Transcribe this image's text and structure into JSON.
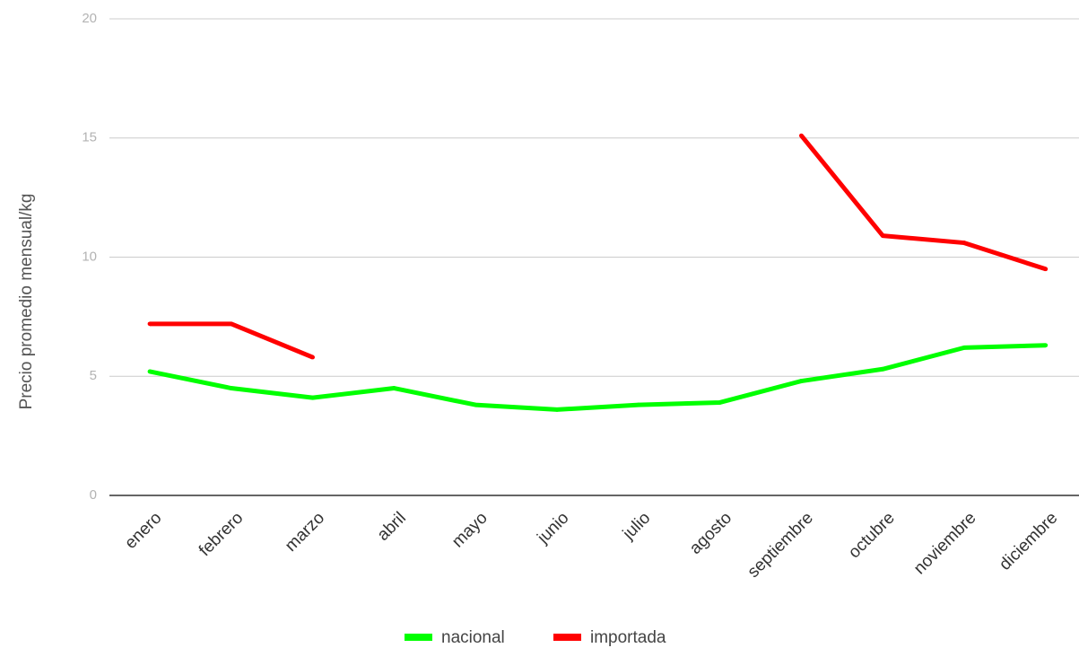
{
  "chart_data": {
    "type": "line",
    "ylabel": "Precio promedio mensual/kg",
    "xlabel": "",
    "ylim": [
      0,
      20
    ],
    "yticks": [
      0,
      5,
      10,
      15,
      20
    ],
    "grid": true,
    "legend_position": "bottom",
    "categories": [
      "enero",
      "febrero",
      "marzo",
      "abril",
      "mayo",
      "junio",
      "julio",
      "agosto",
      "septiembre",
      "octubre",
      "noviembre",
      "diciembre"
    ],
    "series": [
      {
        "name": "nacional",
        "color": "#00ff00",
        "values": [
          5.2,
          4.5,
          4.1,
          4.5,
          3.8,
          3.6,
          3.8,
          3.9,
          4.8,
          5.3,
          6.2,
          6.3
        ]
      },
      {
        "name": "importada",
        "color": "#ff0000",
        "values": [
          7.2,
          7.2,
          5.8,
          null,
          null,
          null,
          null,
          null,
          15.1,
          10.9,
          10.6,
          9.5
        ]
      }
    ]
  }
}
